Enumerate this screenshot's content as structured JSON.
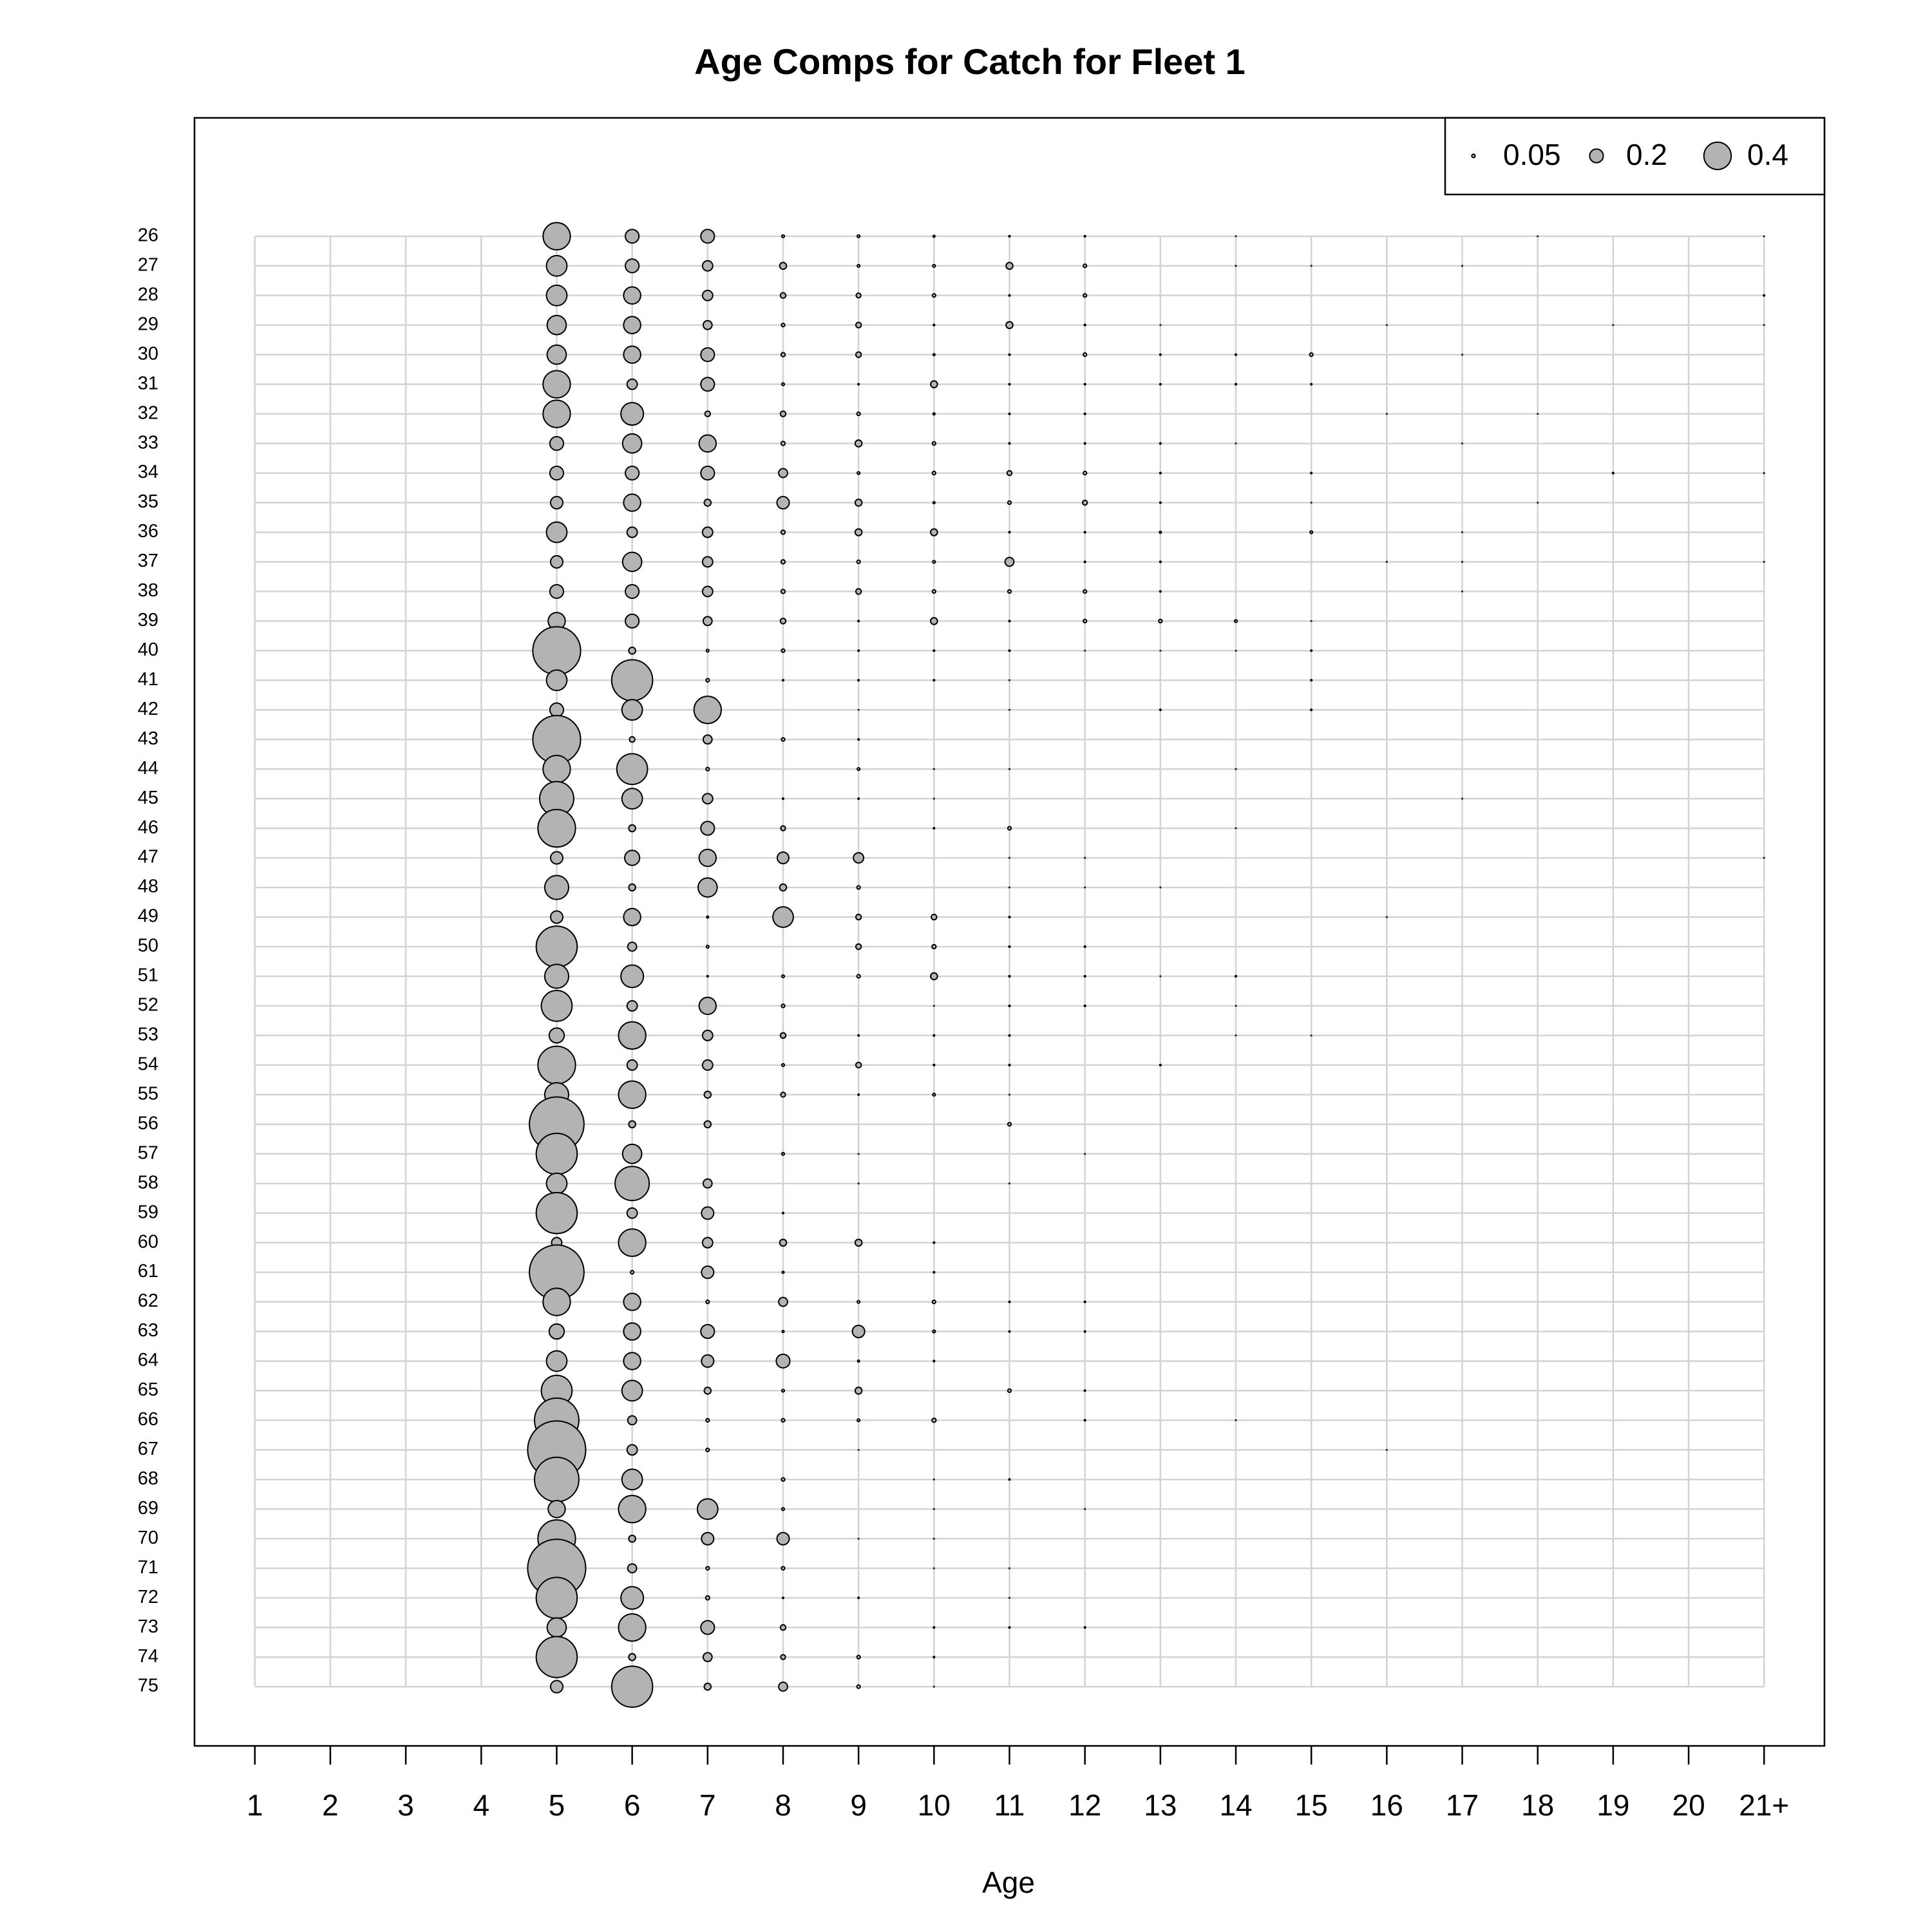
{
  "chart_data": {
    "type": "bubble",
    "title": "Age Comps for Catch for Fleet 1",
    "xlabel": "Age",
    "x": [
      1,
      2,
      3,
      4,
      5,
      6,
      7,
      8,
      9,
      10,
      11,
      12,
      13,
      14,
      15,
      16,
      17,
      18,
      19,
      20,
      21
    ],
    "y": [
      26,
      27,
      28,
      29,
      30,
      31,
      32,
      33,
      34,
      35,
      36,
      37,
      38,
      39,
      40,
      41,
      42,
      43,
      44,
      45,
      46,
      47,
      48,
      49,
      50,
      51,
      52,
      53,
      54,
      55,
      56,
      57,
      58,
      59,
      60,
      61,
      62,
      63,
      64,
      65,
      66,
      67,
      68,
      69,
      70,
      71,
      72,
      73,
      74,
      75
    ],
    "xlim": [
      0.2,
      21.8
    ],
    "ylim": [
      77,
      22
    ],
    "xticks": [
      1,
      2,
      3,
      4,
      5,
      6,
      7,
      8,
      9,
      10,
      11,
      12,
      13,
      14,
      15,
      16,
      17,
      18,
      19,
      20,
      {
        "value": 21,
        "label": "21+"
      }
    ],
    "yticks": [
      26,
      27,
      28,
      29,
      30,
      31,
      32,
      33,
      34,
      35,
      36,
      37,
      38,
      39,
      40,
      41,
      42,
      43,
      44,
      45,
      46,
      47,
      48,
      49,
      50,
      51,
      52,
      53,
      54,
      55,
      56,
      57,
      58,
      59,
      60,
      61,
      62,
      63,
      64,
      65,
      66,
      67,
      68,
      69,
      70,
      71,
      72,
      73,
      74,
      75
    ],
    "grid": true,
    "color": "#b3b3b3",
    "size_legend": [
      0.05,
      0.2,
      0.4
    ],
    "legend": "top-right",
    "values": [
      [
        null,
        null,
        null,
        null,
        0.4,
        0.2,
        0.2,
        0.04,
        0.04,
        0.03,
        0.02,
        0.02,
        null,
        0.01,
        null,
        null,
        null,
        0.01,
        null,
        null,
        0.01
      ],
      [
        null,
        null,
        null,
        null,
        0.3,
        0.2,
        0.15,
        0.1,
        0.04,
        0.04,
        0.1,
        0.05,
        null,
        0.01,
        0.01,
        null,
        0.01,
        null,
        null,
        null,
        null
      ],
      [
        null,
        null,
        null,
        null,
        0.3,
        0.25,
        0.15,
        0.08,
        0.07,
        0.05,
        0.02,
        0.05,
        null,
        null,
        null,
        null,
        null,
        null,
        null,
        null,
        0.02
      ],
      [
        null,
        null,
        null,
        null,
        0.28,
        0.25,
        0.13,
        0.05,
        0.08,
        0.02,
        0.1,
        0.02,
        0.01,
        null,
        null,
        0.01,
        null,
        null,
        0.01,
        null,
        0.01
      ],
      [
        null,
        null,
        null,
        null,
        0.28,
        0.25,
        0.2,
        0.06,
        0.08,
        0.03,
        0.02,
        0.05,
        0.02,
        0.02,
        0.05,
        null,
        0.01,
        null,
        null,
        null,
        null
      ],
      [
        null,
        null,
        null,
        null,
        0.4,
        0.15,
        0.2,
        0.04,
        0.02,
        0.1,
        0.02,
        0.02,
        0.02,
        0.02,
        0.02,
        null,
        null,
        null,
        null,
        null,
        null
      ],
      [
        null,
        null,
        null,
        null,
        0.4,
        0.33,
        0.08,
        0.08,
        0.05,
        0.03,
        0.02,
        0.02,
        null,
        null,
        null,
        0.01,
        null,
        0.01,
        null,
        null,
        null
      ],
      [
        null,
        null,
        null,
        null,
        0.2,
        0.28,
        0.25,
        0.06,
        0.1,
        0.05,
        0.02,
        0.02,
        0.02,
        0.01,
        null,
        null,
        0.01,
        null,
        null,
        null,
        null
      ],
      [
        null,
        null,
        null,
        null,
        0.2,
        0.2,
        0.2,
        0.13,
        0.04,
        0.05,
        0.07,
        0.05,
        0.02,
        null,
        0.02,
        null,
        null,
        null,
        0.02,
        null,
        0.01
      ],
      [
        null,
        null,
        null,
        null,
        0.18,
        0.25,
        0.1,
        0.18,
        0.1,
        0.03,
        0.05,
        0.07,
        0.02,
        null,
        0.01,
        null,
        null,
        0.01,
        null,
        null,
        null
      ],
      [
        null,
        null,
        null,
        null,
        0.3,
        0.15,
        0.15,
        0.06,
        0.1,
        0.1,
        0.02,
        0.02,
        0.03,
        null,
        0.04,
        null,
        0.01,
        null,
        null,
        null,
        null
      ],
      [
        null,
        null,
        null,
        null,
        0.18,
        0.28,
        0.15,
        0.06,
        0.05,
        0.04,
        0.13,
        0.02,
        0.02,
        null,
        null,
        0.01,
        0.01,
        null,
        null,
        null,
        0.01
      ],
      [
        null,
        null,
        null,
        null,
        0.2,
        0.2,
        0.15,
        0.06,
        0.08,
        0.05,
        0.05,
        0.05,
        0.02,
        null,
        null,
        null,
        0.01,
        null,
        null,
        null,
        null
      ],
      [
        null,
        null,
        null,
        null,
        0.25,
        0.2,
        0.13,
        0.08,
        0.02,
        0.1,
        0.02,
        0.05,
        0.05,
        0.04,
        0.01,
        null,
        null,
        null,
        null,
        null,
        null
      ],
      [
        null,
        null,
        null,
        null,
        0.7,
        0.1,
        0.04,
        0.05,
        0.02,
        0.02,
        0.02,
        0.01,
        0.01,
        0.01,
        0.02,
        null,
        null,
        null,
        null,
        null,
        null
      ],
      [
        null,
        null,
        null,
        null,
        0.3,
        0.6,
        0.05,
        0.02,
        0.02,
        0.02,
        0.01,
        null,
        null,
        null,
        0.02,
        null,
        null,
        null,
        null,
        null,
        null
      ],
      [
        null,
        null,
        null,
        null,
        0.2,
        0.3,
        0.4,
        null,
        0.01,
        null,
        0.01,
        null,
        0.02,
        null,
        0.02,
        null,
        null,
        null,
        null,
        null,
        null
      ],
      [
        null,
        null,
        null,
        null,
        0.7,
        0.08,
        0.13,
        0.05,
        0.02,
        null,
        null,
        null,
        null,
        null,
        null,
        null,
        null,
        null,
        null,
        null,
        null
      ],
      [
        null,
        null,
        null,
        null,
        0.4,
        0.45,
        0.05,
        null,
        0.04,
        0.01,
        0.01,
        null,
        null,
        0.01,
        null,
        null,
        null,
        null,
        null,
        null,
        null
      ],
      [
        null,
        null,
        null,
        null,
        0.5,
        0.3,
        0.15,
        0.02,
        0.02,
        0.01,
        null,
        null,
        null,
        null,
        null,
        null,
        0.01,
        null,
        null,
        null,
        null
      ],
      [
        null,
        null,
        null,
        null,
        0.55,
        0.1,
        0.2,
        0.07,
        null,
        0.02,
        0.05,
        null,
        null,
        0.01,
        null,
        null,
        null,
        null,
        null,
        null,
        null
      ],
      [
        null,
        null,
        null,
        null,
        0.18,
        0.22,
        0.25,
        0.17,
        0.15,
        null,
        0.01,
        0.01,
        null,
        null,
        null,
        null,
        null,
        null,
        null,
        null,
        0.01
      ],
      [
        null,
        null,
        null,
        null,
        0.35,
        0.1,
        0.28,
        0.1,
        0.05,
        null,
        0.01,
        0.01,
        0.01,
        null,
        null,
        null,
        null,
        null,
        null,
        null,
        null
      ],
      [
        null,
        null,
        null,
        null,
        0.18,
        0.25,
        0.03,
        0.3,
        0.08,
        0.08,
        0.02,
        null,
        null,
        null,
        null,
        0.01,
        null,
        null,
        null,
        null,
        null
      ],
      [
        null,
        null,
        null,
        null,
        0.6,
        0.13,
        0.04,
        null,
        0.08,
        0.06,
        0.02,
        0.02,
        null,
        null,
        null,
        null,
        null,
        null,
        null,
        null,
        null
      ],
      [
        null,
        null,
        null,
        null,
        0.35,
        0.33,
        0.02,
        0.04,
        0.05,
        0.1,
        0.02,
        0.02,
        0.01,
        0.02,
        null,
        null,
        null,
        null,
        null,
        null,
        null
      ],
      [
        null,
        null,
        null,
        null,
        0.45,
        0.15,
        0.25,
        0.05,
        null,
        0.01,
        0.02,
        0.02,
        null,
        0.01,
        null,
        null,
        null,
        null,
        null,
        null,
        null
      ],
      [
        null,
        null,
        null,
        null,
        0.22,
        0.4,
        0.15,
        0.08,
        0.02,
        0.02,
        0.02,
        null,
        null,
        0.01,
        0.01,
        null,
        null,
        null,
        null,
        null,
        null
      ],
      [
        null,
        null,
        null,
        null,
        0.55,
        0.15,
        0.15,
        0.04,
        0.08,
        0.02,
        0.02,
        null,
        0.02,
        null,
        null,
        null,
        null,
        null,
        null,
        null,
        null
      ],
      [
        null,
        null,
        null,
        null,
        0.35,
        0.4,
        0.1,
        0.07,
        0.02,
        0.04,
        0.01,
        null,
        null,
        null,
        null,
        null,
        null,
        null,
        null,
        null,
        null
      ],
      [
        null,
        null,
        null,
        null,
        0.8,
        0.1,
        0.1,
        null,
        null,
        null,
        0.05,
        null,
        null,
        null,
        null,
        null,
        null,
        null,
        null,
        null,
        null
      ],
      [
        null,
        null,
        null,
        null,
        0.6,
        0.28,
        null,
        0.04,
        0.01,
        null,
        null,
        0.01,
        null,
        null,
        null,
        null,
        null,
        null,
        null,
        null,
        null
      ],
      [
        null,
        null,
        null,
        null,
        0.3,
        0.5,
        0.13,
        null,
        0.01,
        null,
        0.01,
        null,
        null,
        null,
        null,
        null,
        null,
        null,
        null,
        null,
        null
      ],
      [
        null,
        null,
        null,
        null,
        0.6,
        0.15,
        0.18,
        0.02,
        null,
        null,
        null,
        null,
        null,
        null,
        null,
        null,
        null,
        null,
        null,
        null,
        null
      ],
      [
        null,
        null,
        null,
        null,
        0.15,
        0.4,
        0.15,
        0.1,
        0.1,
        0.02,
        null,
        null,
        null,
        null,
        null,
        null,
        null,
        null,
        null,
        null,
        null
      ],
      [
        null,
        null,
        null,
        null,
        0.8,
        0.05,
        0.18,
        0.03,
        null,
        0.02,
        null,
        null,
        null,
        null,
        null,
        null,
        null,
        null,
        null,
        null,
        null
      ],
      [
        null,
        null,
        null,
        null,
        0.4,
        0.25,
        0.05,
        0.13,
        0.04,
        0.05,
        0.02,
        0.02,
        null,
        null,
        null,
        null,
        null,
        null,
        null,
        null,
        null
      ],
      [
        null,
        null,
        null,
        null,
        0.22,
        0.25,
        0.2,
        0.03,
        0.18,
        0.04,
        0.02,
        0.02,
        null,
        null,
        null,
        null,
        null,
        null,
        null,
        null,
        null
      ],
      [
        null,
        null,
        null,
        null,
        0.3,
        0.25,
        0.18,
        0.2,
        0.03,
        0.02,
        null,
        null,
        null,
        null,
        null,
        null,
        null,
        null,
        null,
        null,
        null
      ],
      [
        null,
        null,
        null,
        null,
        0.45,
        0.3,
        0.1,
        0.04,
        0.1,
        null,
        0.05,
        0.02,
        null,
        null,
        null,
        null,
        null,
        null,
        null,
        null,
        null
      ],
      [
        null,
        null,
        null,
        null,
        0.65,
        0.13,
        0.05,
        0.05,
        0.04,
        0.06,
        null,
        0.02,
        null,
        0.01,
        null,
        null,
        null,
        null,
        null,
        null,
        null
      ],
      [
        null,
        null,
        null,
        null,
        0.85,
        0.15,
        0.05,
        null,
        0.01,
        null,
        null,
        null,
        null,
        null,
        null,
        0.01,
        null,
        null,
        null,
        null,
        null
      ],
      [
        null,
        null,
        null,
        null,
        0.65,
        0.3,
        null,
        0.05,
        null,
        0.01,
        0.02,
        null,
        null,
        null,
        null,
        null,
        null,
        null,
        null,
        null,
        null
      ],
      [
        null,
        null,
        null,
        null,
        0.25,
        0.4,
        0.3,
        0.04,
        null,
        0.01,
        null,
        0.01,
        null,
        null,
        null,
        null,
        null,
        null,
        null,
        null,
        null
      ],
      [
        null,
        null,
        null,
        null,
        0.55,
        0.1,
        0.18,
        0.18,
        0.01,
        0.01,
        null,
        null,
        null,
        null,
        null,
        null,
        null,
        null,
        null,
        null,
        null
      ],
      [
        null,
        null,
        null,
        null,
        0.85,
        0.13,
        0.05,
        0.05,
        null,
        0.01,
        0.01,
        null,
        null,
        null,
        null,
        null,
        null,
        null,
        null,
        null,
        null
      ],
      [
        null,
        null,
        null,
        null,
        0.6,
        0.33,
        0.06,
        0.02,
        0.02,
        null,
        0.01,
        null,
        null,
        null,
        null,
        null,
        null,
        null,
        null,
        null,
        null
      ],
      [
        null,
        null,
        null,
        null,
        0.28,
        0.4,
        0.2,
        0.08,
        null,
        0.02,
        0.02,
        0.02,
        null,
        null,
        null,
        null,
        null,
        null,
        null,
        null,
        null
      ],
      [
        null,
        null,
        null,
        null,
        0.6,
        0.1,
        0.13,
        0.07,
        0.05,
        0.02,
        null,
        null,
        null,
        null,
        null,
        null,
        null,
        null,
        null,
        null,
        null
      ],
      [
        null,
        null,
        null,
        null,
        0.18,
        0.6,
        0.1,
        0.13,
        0.05,
        0.01,
        null,
        null,
        null,
        null,
        null,
        null,
        null,
        null,
        null,
        null,
        null
      ]
    ]
  }
}
